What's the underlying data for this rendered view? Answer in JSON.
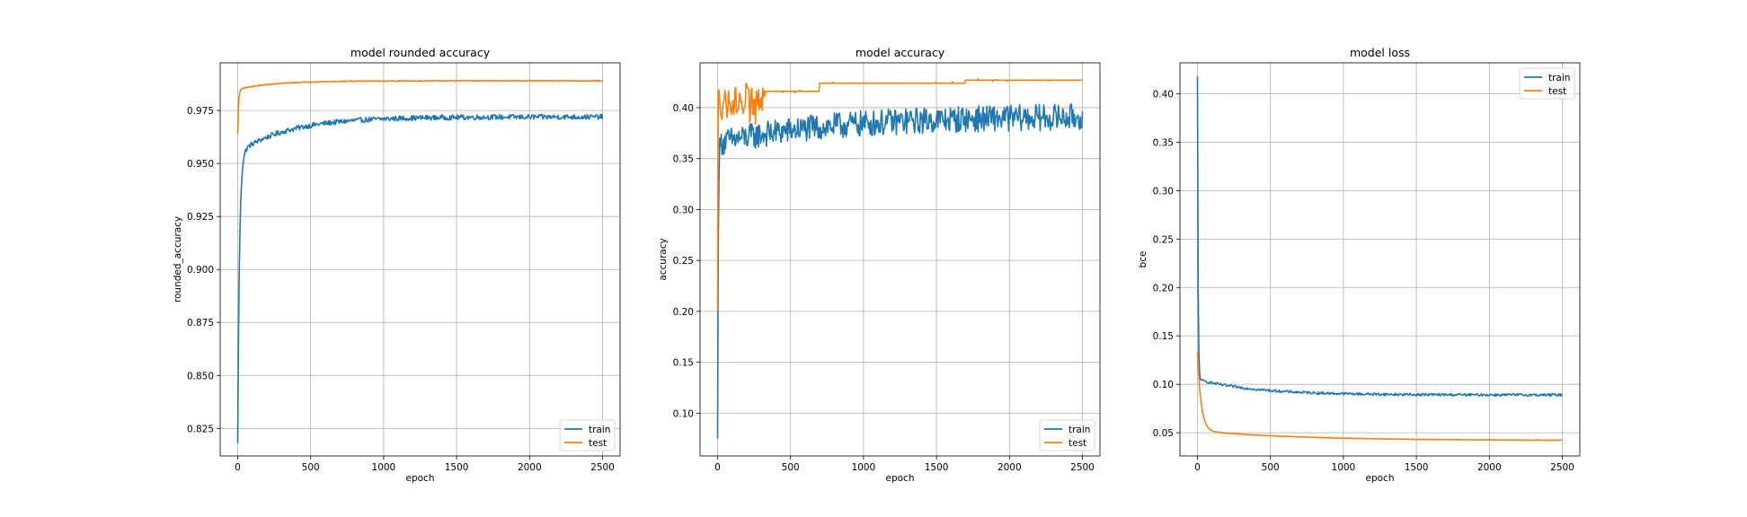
{
  "colors": {
    "train": "#1f77b4",
    "test": "#ff7f0e",
    "grid": "#b0b0b0"
  },
  "chart_data": [
    {
      "type": "line",
      "title": "model rounded accuracy",
      "xlabel": "epoch",
      "ylabel": "rounded_accuracy",
      "xlim": [
        -120,
        2620
      ],
      "ylim": [
        0.812,
        0.9975
      ],
      "xticks": [
        0,
        500,
        1000,
        1500,
        2000,
        2500
      ],
      "yticks": [
        0.825,
        0.85,
        0.875,
        0.9,
        0.925,
        0.95,
        0.975
      ],
      "ytick_labels": [
        "0.825",
        "0.850",
        "0.875",
        "0.900",
        "0.925",
        "0.950",
        "0.975"
      ],
      "grid": true,
      "legend": "lower-right",
      "legend_entries": [
        "train",
        "test"
      ],
      "series": [
        {
          "name": "train",
          "shape": "rise",
          "start": 0.818,
          "end": 0.972,
          "knee": 0.955,
          "tau": 12,
          "tau2": 350,
          "noise": 0.0012,
          "x": [
            0,
            2500
          ]
        },
        {
          "name": "test",
          "shape": "rise",
          "start": 0.964,
          "end": 0.989,
          "knee": 0.985,
          "tau": 6,
          "tau2": 250,
          "noise": 0.0002,
          "x": [
            0,
            2500
          ]
        }
      ]
    },
    {
      "type": "line",
      "title": "model accuracy",
      "xlabel": "epoch",
      "ylabel": "accuracy",
      "xlim": [
        -120,
        2620
      ],
      "ylim": [
        0.058,
        0.444
      ],
      "xticks": [
        0,
        500,
        1000,
        1500,
        2000,
        2500
      ],
      "yticks": [
        0.1,
        0.15,
        0.2,
        0.25,
        0.3,
        0.35,
        0.4
      ],
      "ytick_labels": [
        "0.10",
        "0.15",
        "0.20",
        "0.25",
        "0.30",
        "0.35",
        "0.40"
      ],
      "grid": true,
      "legend": "lower-right",
      "legend_entries": [
        "train",
        "test"
      ],
      "series": [
        {
          "name": "train",
          "shape": "noisy-rise",
          "start": 0.075,
          "end": 0.392,
          "knee": 0.365,
          "tau": 4,
          "tau2": 800,
          "noise": 0.013,
          "x": [
            0,
            2500
          ]
        },
        {
          "name": "test",
          "shape": "step",
          "start": 0.2,
          "end": 0.427,
          "knee": 0.405,
          "tau": 3,
          "tau2": 600,
          "noise": 0.012,
          "x": [
            0,
            2500
          ]
        }
      ]
    },
    {
      "type": "line",
      "title": "model loss",
      "xlabel": "epoch",
      "ylabel": "bce",
      "xlim": [
        -120,
        2620
      ],
      "ylim": [
        0.026,
        0.432
      ],
      "xticks": [
        0,
        500,
        1000,
        1500,
        2000,
        2500
      ],
      "yticks": [
        0.05,
        0.1,
        0.15,
        0.2,
        0.25,
        0.3,
        0.35,
        0.4
      ],
      "ytick_labels": [
        "0.05",
        "0.10",
        "0.15",
        "0.20",
        "0.25",
        "0.30",
        "0.35",
        "0.40"
      ],
      "grid": true,
      "legend": "upper-right",
      "legend_entries": [
        "train",
        "test"
      ],
      "series": [
        {
          "name": "train",
          "shape": "decay",
          "start": 0.418,
          "end": 0.089,
          "knee": 0.105,
          "tau": 4,
          "tau2": 400,
          "noise": 0.0013,
          "x": [
            0,
            2500
          ]
        },
        {
          "name": "test",
          "shape": "decay",
          "start": 0.133,
          "end": 0.042,
          "knee": 0.052,
          "tau": 25,
          "tau2": 700,
          "noise": 0.0002,
          "x": [
            0,
            2500
          ]
        }
      ]
    }
  ]
}
